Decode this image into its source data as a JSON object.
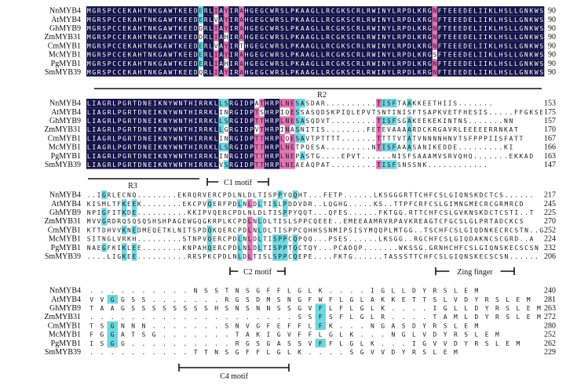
{
  "species": [
    "NnMYB4",
    "AtMYB4",
    "GhMYB9",
    "ZmMYB31",
    "CmMYB1",
    "McMYB1",
    "PgMYB1",
    "SmMYB39"
  ],
  "colors": {
    "identical": "#16154a",
    "high": "#e070b0",
    "low": "#6fd6e0"
  },
  "blocks": [
    {
      "numbers": [
        "90",
        "90",
        "90",
        "90",
        "90",
        "90",
        "90",
        "90"
      ],
      "seqs": [
        "MGRSPCCEKAHTNKGAWTKEEDERLIAYIRAHGEGCWRSLPKAAGLLRCGKSCRLRWINYLRPDLKRGNFTEEEDELIIKLHSLLGNKWS",
        "MGRSPCCEKAHTNKGAWTKEEDERLVAYIRAHGEGCWRSLPKAAGLLRCGKSCRLRWINYLRPDLKRGNFTEEEDELIIKLHSLLGNKWS",
        "MGRSPCCEKAHTNKGAWTKEEDDRLIAYIRAHGEGCWRSLPKAAGLLRCGKSCRLRWINYLRPDLKRGNFTEEEDELIIKLHSLLGNKWS",
        "MGRSPCCEKAHTNKGAWTKEEDDRLIAHIRAHGEGCWRSLPKAAGLLRCGKSCRLRWINYLRPDLKRGNFTEEEDELIIKLHSLLGNKWS",
        "MGRSPCCEKAHTNKGAWTKEEDERLVAYIRTHGEGCWRSLPKAAGLLRCGKSCRLRWINYLRPDLKRGNFTEEEDELIIKLHSLLGNKWS",
        "MGRSPCCEKAHTNKGAWTKEEDERLIAYIRAHGEGCWRSLPKAAGLLRCGKSCRLRWINYLRPDLKRGSFTEEEDELIIKLHSLLGNKWS",
        "MGRSPCCEKAHTNKGAWTKEEDERLIAHIRAHGEGCWRSLPKAAGLLRCGKSCRLRWINYLRPDLKRGNFTEEEDELIIKLHSLLGNKWS",
        "MGRSPCCEKAHTNKGAWTKEEDQRLIAYIRAHGEGCWRSLPKAAGLLRCGKSCRLRWINYLRPDLKRGNFTEEEDELIIKLHSLLGNKWS"
      ]
    },
    {
      "numbers": [
        "153",
        "175",
        "157",
        "170",
        "167",
        "166",
        "163",
        "147"
      ],
      "seqs": [
        "LIAGRLPGRTDNEIKNYWNTHIRRKLLSRGIDPATHRPLNESASDAR..........TISFTAAKKEETHIIS.......",
        "LIAGRLPGRTDNEIKNYWNTHIRRKLINRGIDPTSHRPIQESSASQDSKPIQLEPVTSNTINISFTSAPKVETFHESIS.....FFGKSE",
        "LIAGRLPGRTDNEIKNYWNTHIRRKLLSRGIDPTTHRPLNESASQDVT.........TISFSGAKEEKEKINTNS.......NN",
        "LIAGRLPGRTDNEIKNYWNTHIRRKLLGRGIDPVTHRPINASNITIS........FETEVAAAARDCKRGAVRLEEEEERRNKAT",
        "LIAGRLPGRTDNEIKNYWNTHIRRKLINRGIDPTTHRPLQESAVTPTTTT.......TTTTVTATVNNNNHNVTSFPPPIISFATT",
        "LIAGRLPGRTDNEIKNYWNTHIRRKLLSRGIDPTTHRPLNETPQESA.........NTISFAAASANIKEDDE.........KI",
        "LIAGRLPGRTDNEIKNYWNTHIRRKLINRGIDPTTHRPLNEPASTG....EPVT......NISFSAAAMVSRVQHQ.......EKKAD",
        "LIAGRLPGRTDNEIKNYWNTHIRRKLVSRGIDPTTHRPLNEAEAQPAT.........TISFSNSSNK............"
      ]
    },
    {
      "numbers": [
        "217",
        "245",
        "225",
        "270",
        "252",
        "224",
        "232",
        "206"
      ],
      "seqs": [
        "..IGRLECNQ........EKRQRVERCPDLNLDLTISPPYQQHT...FETP......LKSGGGRTTCHFCSLGIQNSKDCTCS......",
        "KISMLTFKEEK........EKCPVQERFPDLNLDLTISLPDDVDR..LQGHG.....KS..TTPFCRFCSLGIMNGMECRCGRMRCD",
        "NPIGFITKDE..........KKIPVQERCPDLNLDLTISPPYQQT...QFES......FKTGG.RTTCHFCSLGVKNSKDCTCSTI..T",
        "MVVGRDRQSQSQSHSHPAGEWGQGKRPLKCPDLNLDLTISLSPPCQEEE..EMEEAAMRVRPAVKREAGTCFGCSLGLPRTADCKCS",
        "KTTDHVVKNEDMEQETKLNITSPDQKQERCPDLNLDLTISPPCQHHSSNMIPSISYMQQPLMTGG..TSCHFCSLGIQDNKECRCSTN..G",
        "SITNGLVRKH.........STNPVQERCPDLNLDLTISPPCQPQQ...PSES......LKSGG..RGCHFCSLGIQDAKNCSCGRD..A",
        "NAEGFKIKLEE........KNPAHQERCPDLNLDLTISPPTQCTQY...PCADQP.......WKSSG.GRNHCHFCSLGIQNSKECSCSN",
        "....LIGKEE..........RRSPKCPDLNLDLTISLSPPCQEPE....FKTG......TASSSTTCHFCSLGIQNSKECSCSN......"
      ]
    },
    {
      "numbers": [
        "240",
        "281",
        "263",
        "272",
        "280",
        "252",
        "262",
        "229"
      ],
      "seqs": [
        "..........NSSTNSGFFLGLK....IGLLDYRSLEM",
        "VVGGSS.......RGSDMSNGFWFLGLAKKETTSLVDYRSLEM",
        "TAAGSSSSSSSSHSNSNNSSGVFLFLGLK....IGLLDYRSLEM",
        "....................SSFSFLGLR....TAMLDYRSLEM",
        "TSGNNN.......SNVGFEFFLFK...NGASDYRSLEM",
        "FGGATSG.......TAKIGVFFLGLK...NGLVDYRSLEM",
        "ISGG..........RGSGASSVFFLGLK...IGVVDYRSLEM",
        "..........TTNSGFFLGLK....SGVVDYRSLEM"
      ]
    }
  ],
  "motifs": [
    {
      "block": 1,
      "label": "R2"
    },
    {
      "block": 2,
      "label": "R3"
    },
    {
      "block": 2,
      "label": "C1 motif"
    },
    {
      "block": 3,
      "label": "C2 motif"
    },
    {
      "block": 3,
      "label": "Zing finger"
    },
    {
      "block": 4,
      "label": "C4 motif"
    }
  ]
}
